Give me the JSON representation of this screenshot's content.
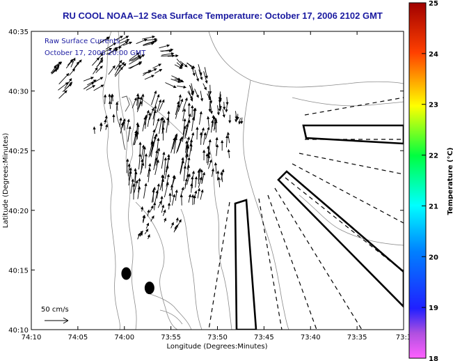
{
  "chart_data": {
    "type": "vector-field",
    "title": "RU COOL  NOAA–12  Sea Surface Temperature:  October 17, 2006 2102 GMT",
    "legend_lines": [
      "Raw Surface Currents",
      "October 17, 2006 20:00 GMT"
    ],
    "xlabel": "Longitude (Degrees:Minutes)",
    "ylabel": "Latitude (Degrees:Minutes)",
    "x_ticks": [
      "74:10",
      "74:05",
      "74:00",
      "73:55",
      "73:50",
      "73:45",
      "73:40",
      "73:35",
      "73:3"
    ],
    "y_ticks": [
      "40:35",
      "40:30",
      "40:25",
      "40:20",
      "40:15",
      "40:10"
    ],
    "xlim_minutes_west": [
      10,
      -30
    ],
    "ylim_minutes_north": [
      10,
      35
    ],
    "scale_label": "50 cm/s",
    "colorbar": {
      "label": "Temperature (°C)",
      "ticks": [
        "25",
        "24",
        "23",
        "22",
        "21",
        "20",
        "19",
        "18"
      ],
      "range": [
        18,
        25
      ]
    },
    "stations": [
      {
        "lon_min": 59.8,
        "lat_min": 14.7
      },
      {
        "lon_min": 57.3,
        "lat_min": 13.5
      }
    ],
    "vectors": [
      {
        "lon": 67.8,
        "lat": 31.5,
        "u": 1.1,
        "v": 0.9
      },
      {
        "lon": 66.5,
        "lat": 30.0,
        "u": 1.3,
        "v": 1.4
      },
      {
        "lon": 65.5,
        "lat": 31.8,
        "u": 0.9,
        "v": 1.2
      },
      {
        "lon": 64.0,
        "lat": 30.5,
        "u": 1.4,
        "v": 0.8
      },
      {
        "lon": 63.0,
        "lat": 32.0,
        "u": 1.0,
        "v": 1.1
      },
      {
        "lon": 62.0,
        "lat": 33.5,
        "u": 1.6,
        "v": 1.0
      },
      {
        "lon": 61.0,
        "lat": 31.2,
        "u": 1.2,
        "v": 1.5
      },
      {
        "lon": 60.5,
        "lat": 34.0,
        "u": 1.5,
        "v": 0.6
      },
      {
        "lon": 59.5,
        "lat": 32.5,
        "u": 1.8,
        "v": 0.9
      },
      {
        "lon": 58.0,
        "lat": 33.8,
        "u": 1.7,
        "v": 0.4
      },
      {
        "lon": 57.5,
        "lat": 31.5,
        "u": 1.4,
        "v": 0.7
      },
      {
        "lon": 56.0,
        "lat": 33.0,
        "u": 1.9,
        "v": 0.3
      },
      {
        "lon": 55.0,
        "lat": 31.0,
        "u": 1.5,
        "v": -0.5
      },
      {
        "lon": 54.0,
        "lat": 32.5,
        "u": 1.1,
        "v": -0.9
      },
      {
        "lon": 53.0,
        "lat": 30.5,
        "u": 0.6,
        "v": -1.4
      },
      {
        "lon": 52.0,
        "lat": 31.8,
        "u": 0.5,
        "v": -1.6
      },
      {
        "lon": 51.0,
        "lat": 30.0,
        "u": 0.3,
        "v": -1.3
      },
      {
        "lon": 50.0,
        "lat": 28.8,
        "u": 0.2,
        "v": -1.5
      },
      {
        "lon": 49.0,
        "lat": 29.5,
        "u": 0.1,
        "v": -1.2
      },
      {
        "lon": 48.0,
        "lat": 28.0,
        "u": 0.0,
        "v": -1.1
      },
      {
        "lon": 58.5,
        "lat": 28.5,
        "u": 0.5,
        "v": 1.9
      },
      {
        "lon": 57.5,
        "lat": 27.0,
        "u": 0.4,
        "v": 2.2
      },
      {
        "lon": 56.5,
        "lat": 28.2,
        "u": 0.6,
        "v": 2.0
      },
      {
        "lon": 55.5,
        "lat": 26.5,
        "u": 0.3,
        "v": 2.4
      },
      {
        "lon": 54.5,
        "lat": 28.0,
        "u": 0.5,
        "v": 2.1
      },
      {
        "lon": 53.5,
        "lat": 26.0,
        "u": 0.4,
        "v": 2.3
      },
      {
        "lon": 52.5,
        "lat": 27.5,
        "u": 0.2,
        "v": 2.0
      },
      {
        "lon": 51.5,
        "lat": 25.5,
        "u": 0.3,
        "v": 1.9
      },
      {
        "lon": 50.5,
        "lat": 27.0,
        "u": 0.1,
        "v": 1.8
      },
      {
        "lon": 49.5,
        "lat": 25.0,
        "u": 0.0,
        "v": 1.6
      },
      {
        "lon": 59.0,
        "lat": 25.5,
        "u": 0.4,
        "v": 2.2
      },
      {
        "lon": 58.0,
        "lat": 24.0,
        "u": 0.3,
        "v": 2.5
      },
      {
        "lon": 57.0,
        "lat": 25.0,
        "u": 0.5,
        "v": 2.3
      },
      {
        "lon": 56.0,
        "lat": 23.5,
        "u": 0.4,
        "v": 2.6
      },
      {
        "lon": 55.0,
        "lat": 24.8,
        "u": 0.6,
        "v": 2.4
      },
      {
        "lon": 54.0,
        "lat": 23.0,
        "u": 0.5,
        "v": 2.2
      },
      {
        "lon": 53.0,
        "lat": 24.5,
        "u": 0.3,
        "v": 2.0
      },
      {
        "lon": 52.0,
        "lat": 22.5,
        "u": 0.2,
        "v": 1.9
      },
      {
        "lon": 51.0,
        "lat": 24.0,
        "u": 0.2,
        "v": 1.7
      },
      {
        "lon": 50.0,
        "lat": 22.5,
        "u": 0.1,
        "v": 1.5
      },
      {
        "lon": 59.5,
        "lat": 22.5,
        "u": 0.3,
        "v": 2.0
      },
      {
        "lon": 58.5,
        "lat": 21.5,
        "u": 0.2,
        "v": 2.2
      },
      {
        "lon": 57.5,
        "lat": 22.8,
        "u": 0.4,
        "v": 2.1
      },
      {
        "lon": 56.5,
        "lat": 21.0,
        "u": 0.3,
        "v": 2.3
      },
      {
        "lon": 55.5,
        "lat": 22.0,
        "u": 0.4,
        "v": 1.9
      },
      {
        "lon": 54.5,
        "lat": 20.8,
        "u": 0.2,
        "v": 1.7
      },
      {
        "lon": 53.5,
        "lat": 21.8,
        "u": 0.3,
        "v": 1.6
      },
      {
        "lon": 52.5,
        "lat": 20.5,
        "u": 0.1,
        "v": 1.4
      },
      {
        "lon": 56.0,
        "lat": 19.8,
        "u": 0.3,
        "v": 1.2
      },
      {
        "lon": 57.5,
        "lat": 19.5,
        "u": 0.2,
        "v": 1.0
      },
      {
        "lon": 55.0,
        "lat": 18.5,
        "u": 0.4,
        "v": 0.9
      },
      {
        "lon": 61.5,
        "lat": 28.5,
        "u": -0.1,
        "v": 1.2
      },
      {
        "lon": 62.5,
        "lat": 26.8,
        "u": 0.0,
        "v": 1.0
      },
      {
        "lon": 60.5,
        "lat": 27.0,
        "u": 0.2,
        "v": 1.4
      },
      {
        "lon": 57.8,
        "lat": 18.0,
        "u": 0.5,
        "v": 0.8
      }
    ]
  }
}
